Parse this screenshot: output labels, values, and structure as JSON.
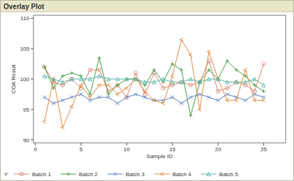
{
  "chart_data": {
    "type": "line",
    "title": "Overlay Plot",
    "x_label": "Sample ID",
    "y_label": "COA Result",
    "legend_title": "Y",
    "x": [
      1,
      2,
      3,
      4,
      5,
      6,
      7,
      8,
      9,
      10,
      11,
      12,
      13,
      14,
      15,
      16,
      17,
      18,
      19,
      20,
      21,
      22,
      23,
      24,
      25
    ],
    "xlim": [
      -0.2,
      27.4
    ],
    "xticks": [
      0,
      5,
      10,
      15,
      20,
      25
    ],
    "ylim": [
      89.5,
      110.5
    ],
    "yticks": [
      90,
      95,
      100,
      105,
      110
    ],
    "grid": false,
    "legend": "bottom",
    "series": [
      {
        "name": "Batch 1",
        "color": "#d9826e",
        "marker": "circle",
        "values": [
          102,
          99.5,
          99,
          100,
          98.5,
          101.5,
          101.5,
          98,
          99,
          97,
          101,
          97.5,
          101,
          98.5,
          99,
          99.5,
          99,
          99.5,
          103,
          98,
          98.5,
          99.5,
          99,
          98,
          102.5
        ]
      },
      {
        "name": "Batch 2",
        "color": "#3f9a3f",
        "marker": "plus",
        "values": [
          102,
          98.5,
          100.5,
          101,
          100.5,
          97.5,
          103.5,
          97.5,
          99,
          100,
          100,
          99,
          101.5,
          99.5,
          102.5,
          101.5,
          94,
          99.5,
          101.5,
          100,
          103,
          101.5,
          100.5,
          99,
          98
        ]
      },
      {
        "name": "Batch 3",
        "color": "#5a7fc0",
        "marker": "x",
        "values": [
          97,
          96,
          96.5,
          97,
          97.5,
          96.5,
          97,
          97,
          96,
          97,
          97.5,
          97,
          96.5,
          96.5,
          97,
          96,
          97,
          97.5,
          97,
          96.5,
          97.5,
          97,
          96.5,
          97.5,
          97
        ]
      },
      {
        "name": "Batch 4",
        "color": "#e08a3c",
        "marker": "less",
        "values": [
          93,
          100,
          92,
          95.5,
          99,
          97,
          99,
          99,
          97.5,
          98.5,
          100,
          98,
          96.5,
          96,
          100.5,
          106.5,
          104,
          95,
          104.5,
          100,
          96.5,
          96.5,
          101.5,
          96.5,
          96.5
        ]
      },
      {
        "name": "Batch 5",
        "color": "#4fb3a5",
        "marker": "triangle",
        "values": [
          100.5,
          100,
          99.5,
          100,
          100,
          100,
          100.5,
          100,
          100,
          100,
          100,
          99.5,
          99.5,
          100,
          99.5,
          99.5,
          100,
          99.5,
          100,
          100,
          99.5,
          99.5,
          99.5,
          100,
          99
        ]
      }
    ]
  }
}
